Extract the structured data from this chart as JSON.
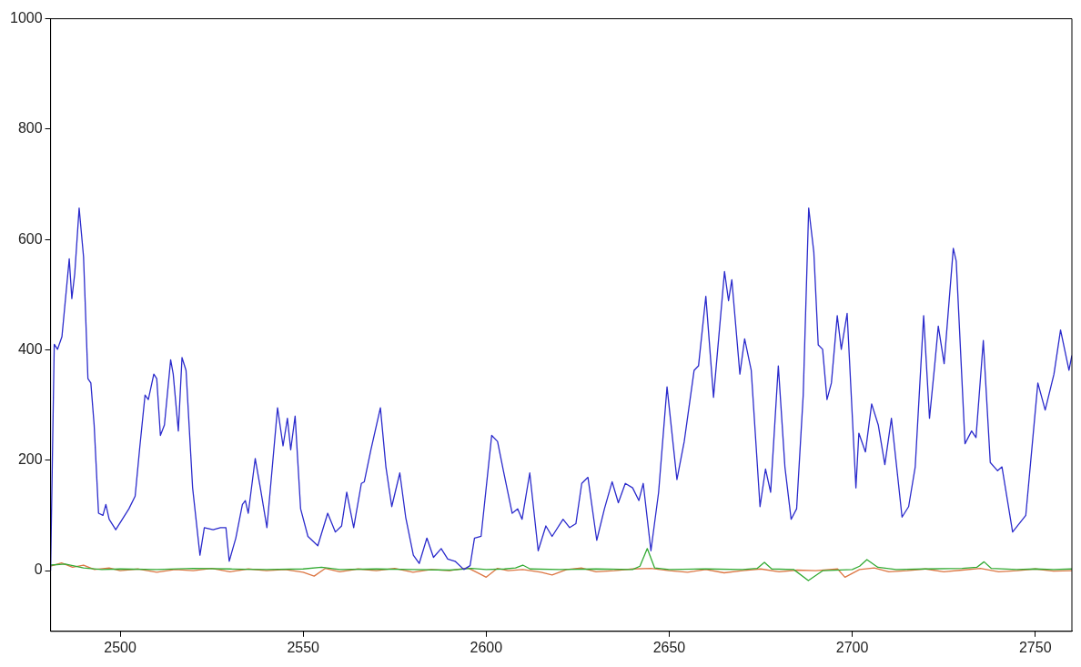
{
  "chart_data": {
    "type": "line",
    "xlim": [
      2481,
      2760
    ],
    "xticks": [
      2500,
      2550,
      2600,
      2650,
      2700,
      2750
    ],
    "ylim": [
      -110,
      1000
    ],
    "yticks": [
      0,
      200,
      400,
      600,
      800,
      1000
    ],
    "grid": false,
    "legend": false,
    "marker": "none",
    "line_style": "solid",
    "series": [
      {
        "color": "#2b2bcc",
        "x": [
          2481,
          2482,
          2482.9,
          2484.1,
          2486.1,
          2486.8,
          2487.6,
          2488.8,
          2490,
          2491.2,
          2492,
          2492.9,
          2494.1,
          2495.3,
          2496.1,
          2497,
          2498.8,
          2500.6,
          2502.4,
          2504.1,
          2505.3,
          2506.8,
          2507.7,
          2509.2,
          2510,
          2511,
          2512.1,
          2513.8,
          2514.5,
          2515.9,
          2516.9,
          2518,
          2519.8,
          2521.8,
          2523,
          2525.4,
          2527.4,
          2528.9,
          2529.8,
          2531.6,
          2533.4,
          2534.2,
          2535,
          2536.9,
          2538.3,
          2540.1,
          2543,
          2544.5,
          2545.7,
          2546.6,
          2547.8,
          2549.3,
          2551.3,
          2554,
          2556.7,
          2558.8,
          2560.5,
          2561.9,
          2563.8,
          2565.9,
          2566.7,
          2568.5,
          2571.1,
          2572.6,
          2574.2,
          2576.4,
          2578,
          2580.1,
          2581.7,
          2583.8,
          2585.6,
          2587.7,
          2589.5,
          2591.5,
          2593.9,
          2595.6,
          2596.8,
          2598.6,
          2601.5,
          2603.1,
          2604.7,
          2607.1,
          2608.6,
          2609.8,
          2611.9,
          2614.2,
          2616.3,
          2618,
          2621,
          2622.8,
          2624.5,
          2626.1,
          2627.8,
          2630.2,
          2632.3,
          2634.4,
          2636.1,
          2638,
          2640,
          2641.7,
          2642.9,
          2645,
          2647.1,
          2649.4,
          2652.1,
          2654.1,
          2656.8,
          2658,
          2660,
          2662.1,
          2665.1,
          2666.2,
          2667.1,
          2669.3,
          2670.6,
          2672.4,
          2674.8,
          2676.3,
          2677.7,
          2679.8,
          2681.6,
          2683.3,
          2684.8,
          2686.6,
          2688.1,
          2689.5,
          2690.7,
          2691.9,
          2693.1,
          2694.3,
          2695.9,
          2697,
          2698.6,
          2701,
          2701.8,
          2703.6,
          2705.3,
          2707.1,
          2708.9,
          2710.7,
          2713.6,
          2715.4,
          2717.2,
          2719.5,
          2721.1,
          2722.5,
          2723.5,
          2725.1,
          2727.6,
          2728.4,
          2730.8,
          2732.6,
          2733.8,
          2735.8,
          2737.7,
          2739.7,
          2740.9,
          2743.8,
          2747.4,
          2750.7,
          2752.7,
          2755.1,
          2756.9,
          2759.2,
          2760
        ],
        "values": [
          0,
          410,
          401,
          424,
          565,
          493,
          538,
          657,
          569,
          348,
          340,
          264,
          104,
          100,
          120,
          93,
          74,
          93,
          112,
          135,
          219,
          318,
          310,
          356,
          348,
          245,
          264,
          382,
          356,
          253,
          386,
          363,
          150,
          28,
          78,
          74,
          78,
          78,
          17,
          59,
          120,
          127,
          104,
          203,
          150,
          78,
          295,
          226,
          276,
          219,
          280,
          112,
          62,
          45,
          104,
          70,
          81,
          142,
          78,
          158,
          161,
          219,
          295,
          188,
          116,
          177,
          97,
          28,
          13,
          59,
          24,
          40,
          21,
          17,
          2,
          9,
          59,
          62,
          245,
          234,
          181,
          104,
          112,
          93,
          177,
          36,
          81,
          62,
          93,
          78,
          85,
          158,
          169,
          55,
          112,
          161,
          123,
          158,
          150,
          127,
          158,
          36,
          142,
          333,
          165,
          234,
          363,
          371,
          497,
          314,
          542,
          489,
          527,
          356,
          420,
          363,
          116,
          184,
          142,
          371,
          188,
          93,
          112,
          318,
          657,
          577,
          409,
          401,
          310,
          340,
          462,
          401,
          466,
          150,
          249,
          215,
          302,
          264,
          192,
          276,
          97,
          116,
          188,
          462,
          276,
          371,
          443,
          375,
          584,
          561,
          230,
          253,
          241,
          417,
          196,
          181,
          188,
          70,
          100,
          340,
          291,
          356,
          436,
          363,
          390
        ]
      },
      {
        "color": "#33aa33",
        "x": [
          2481,
          2485,
          2490,
          2495,
          2500,
          2510,
          2520,
          2530,
          2540,
          2550,
          2555,
          2560,
          2570,
          2580,
          2590,
          2596,
          2600,
          2605,
          2608,
          2610,
          2612,
          2620,
          2630,
          2640,
          2642,
          2644,
          2646,
          2650,
          2660,
          2670,
          2674,
          2676,
          2678,
          2684,
          2688,
          2692,
          2700,
          2702,
          2704,
          2707,
          2712,
          2720,
          2730,
          2734,
          2736,
          2738,
          2745,
          2750,
          2755,
          2760
        ],
        "values": [
          10,
          12,
          5,
          2,
          3,
          2,
          4,
          3,
          2,
          3,
          6,
          2,
          3,
          2,
          1,
          4,
          2,
          3,
          5,
          10,
          3,
          2,
          3,
          2,
          8,
          40,
          5,
          2,
          3,
          2,
          4,
          15,
          3,
          2,
          -18,
          0,
          2,
          8,
          20,
          6,
          2,
          3,
          4,
          6,
          16,
          4,
          2,
          3,
          2,
          3
        ]
      },
      {
        "color": "#dd7744",
        "x": [
          2481,
          2484,
          2487,
          2490,
          2493,
          2497,
          2500,
          2505,
          2510,
          2515,
          2520,
          2525,
          2530,
          2535,
          2540,
          2545,
          2550,
          2553,
          2556,
          2560,
          2565,
          2570,
          2575,
          2580,
          2585,
          2590,
          2595,
          2598,
          2600,
          2603,
          2606,
          2610,
          2615,
          2618,
          2622,
          2626,
          2630,
          2635,
          2640,
          2645,
          2650,
          2655,
          2660,
          2665,
          2670,
          2675,
          2680,
          2685,
          2690,
          2696,
          2698,
          2702,
          2706,
          2710,
          2715,
          2720,
          2725,
          2730,
          2735,
          2740,
          2745,
          2750,
          2755,
          2760
        ],
        "values": [
          8,
          14,
          6,
          10,
          2,
          5,
          0,
          3,
          -3,
          2,
          0,
          4,
          -2,
          3,
          0,
          2,
          -3,
          -10,
          4,
          -2,
          3,
          0,
          4,
          -3,
          2,
          0,
          5,
          -5,
          -12,
          4,
          0,
          2,
          -3,
          -8,
          2,
          5,
          -2,
          0,
          3,
          4,
          0,
          -3,
          2,
          -4,
          0,
          3,
          -2,
          1,
          0,
          3,
          -12,
          2,
          5,
          -2,
          0,
          3,
          -2,
          1,
          4,
          -2,
          0,
          3,
          -1,
          0
        ]
      }
    ]
  }
}
